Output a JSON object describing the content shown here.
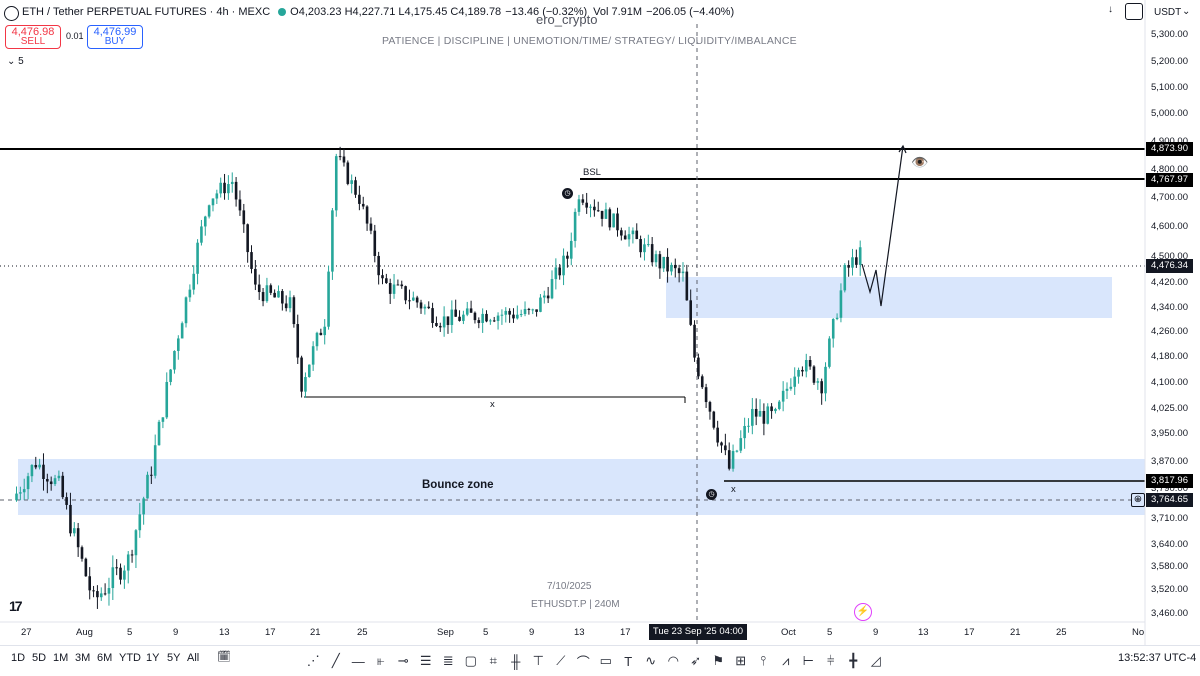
{
  "header": {
    "symbol_line": "ETH / Tether PERPETUAL FUTURES · 4h · MEXC",
    "ohlc": "O4,203.23 H4,227.71 L4,175.45 C4,189.78",
    "change": "−13.46 (−0.32%)",
    "volume": "Vol 7.91M",
    "vol_change": "−206.05 (−4.40%)",
    "sell_price": "4,476.98",
    "sell_label": "SELL",
    "spread": "0.01",
    "buy_price": "4,476.99",
    "buy_label": "BUY",
    "indicator_toggle": "5",
    "author": "ero_crypto",
    "subtitle": "PATIENCE | DISCIPLINE | UNEMOTION/TIME/ STRATEGY/ LIQUIDITY/IMBALANCE",
    "currency": "USDT",
    "arrow_icon": "down-arrow-icon"
  },
  "price_labels": {
    "line_top": "4,873.90",
    "line_bsl": "4,767.97",
    "current": "4,476.34",
    "line_low": "3,817.96",
    "cursor": "3,764.65"
  },
  "annotations": {
    "bsl": "BSL",
    "x_mid": "x",
    "x_right": "x",
    "bounce_zone": "Bounce zone",
    "watermark_date": "7/10/2025",
    "watermark_symbol": "ETHUSDT.P | 240M",
    "eye_icon": "👁️"
  },
  "crosshair_x_label": "Tue 23 Sep '25  04:00",
  "timeframes": [
    "1D",
    "5D",
    "1M",
    "3M",
    "6M",
    "YTD",
    "1Y",
    "5Y",
    "All"
  ],
  "clock": "13:52:37 UTC-4",
  "colors": {
    "zone_fill": "#d9e6fc",
    "up": "#26a69a",
    "down": "#131722",
    "sell": "#f23645",
    "buy": "#2962ff"
  },
  "chart_data": {
    "type": "candlestick",
    "title": "ETH / Tether PERPETUAL FUTURES · 4h · MEXC",
    "y_ticks": [
      "5,300.00",
      "5,200.00",
      "5,100.00",
      "5,000.00",
      "4,900.00",
      "4,800.00",
      "4,700.00",
      "4,600.00",
      "4,500.00",
      "4,420.00",
      "4,340.00",
      "4,260.00",
      "4,180.00",
      "4,100.00",
      "4,025.00",
      "3,950.00",
      "3,870.00",
      "3,790.00",
      "3,710.00",
      "3,640.00",
      "3,580.00",
      "3,520.00",
      "3,460.00"
    ],
    "x_ticks": [
      "27",
      "Aug",
      "5",
      "9",
      "13",
      "17",
      "21",
      "25",
      "Sep",
      "5",
      "9",
      "13",
      "17",
      "21",
      "Oct",
      "5",
      "9",
      "13",
      "17",
      "21",
      "25",
      "No"
    ],
    "approx_path": [
      [
        "2025-07-26",
        3760
      ],
      [
        "2025-07-28",
        3870
      ],
      [
        "2025-07-30",
        3800
      ],
      [
        "2025-08-02",
        3490
      ],
      [
        "2025-08-05",
        3600
      ],
      [
        "2025-08-07",
        3850
      ],
      [
        "2025-08-09",
        4200
      ],
      [
        "2025-08-12",
        4700
      ],
      [
        "2025-08-14",
        4760
      ],
      [
        "2025-08-16",
        4400
      ],
      [
        "2025-08-19",
        4350
      ],
      [
        "2025-08-20",
        4100
      ],
      [
        "2025-08-22",
        4300
      ],
      [
        "2025-08-23",
        4850
      ],
      [
        "2025-08-25",
        4700
      ],
      [
        "2025-08-27",
        4420
      ],
      [
        "2025-08-30",
        4360
      ],
      [
        "2025-09-01",
        4300
      ],
      [
        "2025-09-05",
        4320
      ],
      [
        "2025-09-09",
        4320
      ],
      [
        "2025-09-12",
        4500
      ],
      [
        "2025-09-13",
        4720
      ],
      [
        "2025-09-15",
        4650
      ],
      [
        "2025-09-18",
        4550
      ],
      [
        "2025-09-20",
        4480
      ],
      [
        "2025-09-22",
        4440
      ],
      [
        "2025-09-23",
        4180
      ],
      [
        "2025-09-25",
        3950
      ],
      [
        "2025-09-26",
        3850
      ],
      [
        "2025-09-28",
        4010
      ],
      [
        "2025-09-30",
        4000
      ],
      [
        "2025-10-02",
        4170
      ],
      [
        "2025-10-04",
        4100
      ],
      [
        "2025-10-06",
        4450
      ],
      [
        "2025-10-07",
        4500
      ],
      [
        "2025-10-08",
        4520
      ],
      [
        "2025-10-09",
        4700
      ],
      [
        "2025-10-10",
        4480
      ]
    ]
  }
}
